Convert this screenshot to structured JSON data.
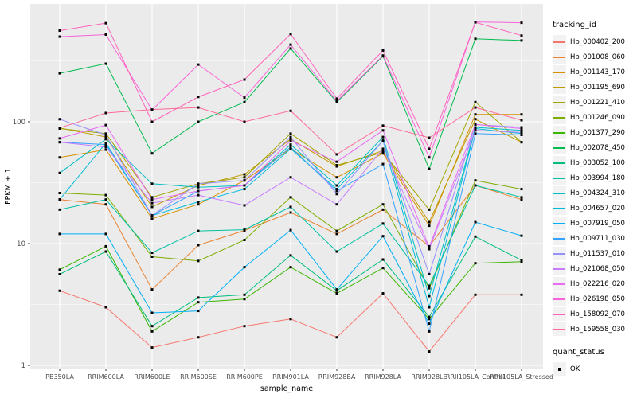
{
  "chart_data": {
    "type": "line",
    "title": "",
    "xlabel": "sample_name",
    "ylabel": "FPKM + 1",
    "y_scale": "log10",
    "y_ticks": [
      1,
      10,
      100
    ],
    "ylim": [
      0.87,
      950
    ],
    "grid": true,
    "legend_position": "right",
    "panel_bg": "#EBEBEB",
    "grid_color": "#FFFFFF",
    "axis_text_color": "#4D4D4D",
    "point_color": "#000000",
    "point_shape": "square",
    "categories": [
      "PB350LA",
      "RRIM600LA",
      "RRIM600LE",
      "RRIM600SE",
      "RRIM600PE",
      "RRIM901LA",
      "RRIM928BA",
      "RRIM928LA",
      "RRIM928LE",
      "RRII105LA_Control",
      "RRII105LA_Stressed"
    ],
    "legend": {
      "color_title": "tracking_id",
      "shape_title": "quant_status",
      "shape_items": [
        {
          "label": "OK"
        }
      ]
    },
    "series": [
      {
        "name": "Hb_000402_200",
        "color": "#F8766D",
        "values": [
          4.1,
          3.0,
          1.4,
          1.7,
          2.1,
          2.4,
          1.7,
          3.9,
          1.3,
          3.8,
          3.8
        ]
      },
      {
        "name": "Hb_001008_060",
        "color": "#EA8331",
        "values": [
          23,
          21,
          4.2,
          9.7,
          12.8,
          18,
          12,
          19,
          9.5,
          30,
          23
        ]
      },
      {
        "name": "Hb_001143_170",
        "color": "#D89000",
        "values": [
          51,
          59,
          16,
          21,
          33,
          60,
          35,
          55,
          14,
          115,
          115
        ]
      },
      {
        "name": "Hb_001195_690",
        "color": "#C09B00",
        "values": [
          89,
          75,
          20,
          30,
          37,
          72,
          43,
          58,
          15,
          105,
          68
        ]
      },
      {
        "name": "Hb_001221_410",
        "color": "#A3A500",
        "values": [
          88,
          80,
          24,
          31,
          35,
          80,
          44,
          56,
          19,
          145,
          68
        ]
      },
      {
        "name": "Hb_001246_090",
        "color": "#7CAE00",
        "values": [
          26,
          25,
          7.8,
          7.2,
          10.7,
          24,
          12.7,
          21,
          4.3,
          33,
          28
        ]
      },
      {
        "name": "Hb_001377_290",
        "color": "#39B600",
        "values": [
          6.1,
          9.5,
          1.9,
          3.3,
          3.5,
          6.4,
          3.9,
          6.3,
          2.4,
          6.9,
          7.1
        ]
      },
      {
        "name": "Hb_002078_450",
        "color": "#00BB4E",
        "values": [
          250,
          300,
          55,
          100,
          145,
          400,
          145,
          345,
          41,
          480,
          465
        ]
      },
      {
        "name": "Hb_003052_100",
        "color": "#00BF7D",
        "values": [
          5.6,
          8.6,
          2.1,
          3.6,
          3.8,
          8.0,
          4.1,
          7.4,
          2.5,
          11.4,
          7.3
        ]
      },
      {
        "name": "Hb_003994_180",
        "color": "#00C1A3",
        "values": [
          19,
          23,
          8.4,
          12.7,
          13.0,
          20,
          8.6,
          14.6,
          4.5,
          30,
          24
        ]
      },
      {
        "name": "Hb_004324_310",
        "color": "#00BFC4",
        "values": [
          38,
          72,
          31,
          29,
          30,
          65,
          30,
          75,
          3.7,
          90,
          85
        ]
      },
      {
        "name": "Hb_004657_020",
        "color": "#00BBDA",
        "values": [
          23,
          67,
          17,
          22,
          28,
          60,
          28,
          70,
          3.0,
          88,
          80
        ]
      },
      {
        "name": "Hb_007919_050",
        "color": "#00B0F6",
        "values": [
          12,
          12,
          2.7,
          2.8,
          6.4,
          12.9,
          4.2,
          11.5,
          2.2,
          15,
          11.6
        ]
      },
      {
        "name": "Hb_009711_030",
        "color": "#35A2FF",
        "values": [
          68,
          65,
          17,
          27,
          30,
          62,
          27,
          45,
          1.9,
          80,
          78
        ]
      },
      {
        "name": "Hb_011537_010",
        "color": "#9590FF",
        "values": [
          105,
          78,
          17,
          31,
          33,
          75,
          25.5,
          70,
          5.6,
          95,
          90
        ]
      },
      {
        "name": "Hb_021068_050",
        "color": "#C77CFF",
        "values": [
          68,
          62,
          21.5,
          25,
          20.6,
          35,
          21,
          60,
          9.0,
          85,
          82
        ]
      },
      {
        "name": "Hb_022216_020",
        "color": "#E76BF3",
        "values": [
          73,
          94,
          23,
          27,
          30,
          70,
          47,
          85,
          9.3,
          95,
          88
        ]
      },
      {
        "name": "Hb_026198_050",
        "color": "#FA62DB",
        "values": [
          500,
          520,
          125,
          295,
          158,
          430,
          148,
          350,
          51,
          660,
          650
        ]
      },
      {
        "name": "Hb_158092_070",
        "color": "#FF62BC",
        "values": [
          560,
          645,
          100,
          160,
          222,
          525,
          155,
          385,
          60,
          655,
          510
        ]
      },
      {
        "name": "Hb_159558_030",
        "color": "#FF6A98",
        "values": [
          89,
          118,
          126,
          131,
          100,
          123,
          54,
          93,
          74,
          131,
          103
        ]
      }
    ]
  }
}
